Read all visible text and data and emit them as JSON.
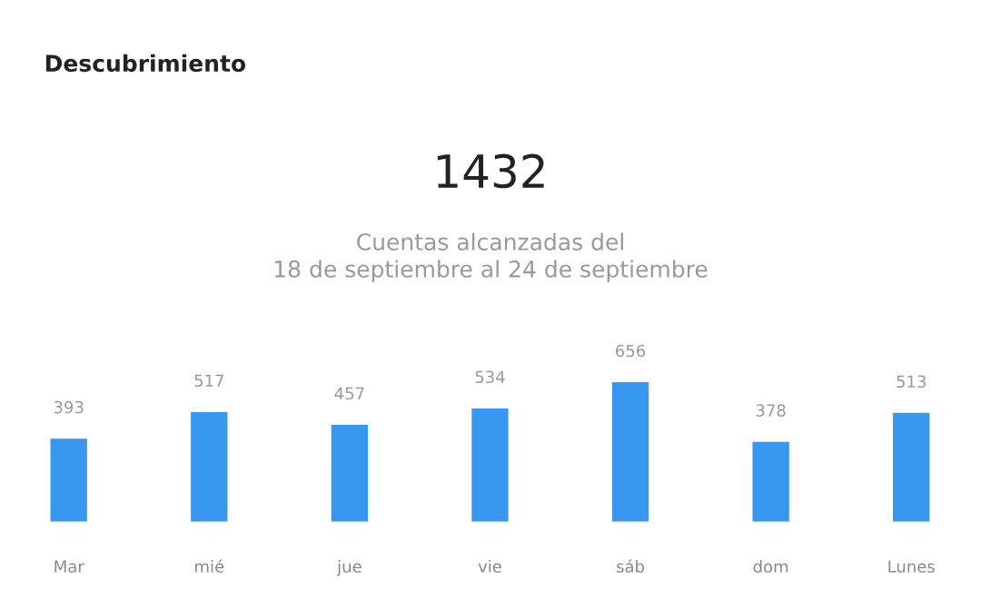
{
  "chart_data": {
    "type": "bar",
    "title": "Descubrimiento",
    "annotations": [
      "1432",
      "Cuentas alcanzadas del\n18 de septiembre al 24 de septiembre"
    ],
    "categories": [
      "Mar",
      "mié",
      "jue",
      "vie",
      "sáb",
      "dom",
      "Lunes"
    ],
    "values": [
      393,
      517,
      457,
      534,
      656,
      378,
      513
    ],
    "color": "#3897ee",
    "data_labels": true
  }
}
